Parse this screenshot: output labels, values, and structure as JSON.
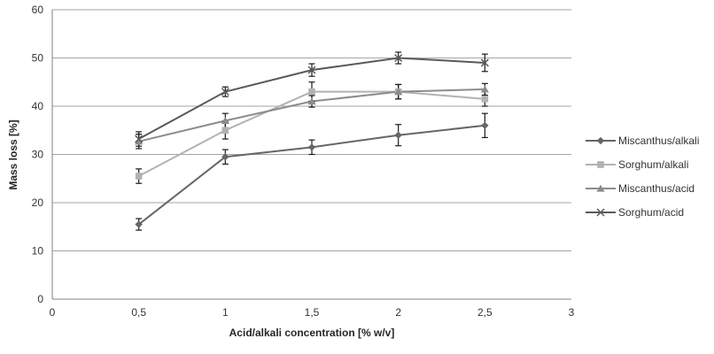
{
  "chart_data": {
    "type": "line",
    "title": "",
    "xlabel": "Acid/alkali concentration [% w/v]",
    "ylabel": "Mass loss [%]",
    "x": [
      0.5,
      1,
      1.5,
      2,
      2.5
    ],
    "xlim": [
      0,
      3
    ],
    "ylim": [
      0,
      60
    ],
    "x_tick_values": [
      0,
      0.5,
      1,
      1.5,
      2,
      2.5,
      3
    ],
    "x_tick_labels": [
      "0",
      "0,5",
      "1",
      "1,5",
      "2",
      "2,5",
      "3"
    ],
    "y_tick_values": [
      0,
      10,
      20,
      30,
      40,
      50,
      60
    ],
    "y_tick_labels": [
      "0",
      "10",
      "20",
      "30",
      "40",
      "50",
      "60"
    ],
    "grid": true,
    "legend_position": "right",
    "series": [
      {
        "name": "Miscanthus/alkali",
        "marker": "diamond",
        "color": "#666666",
        "values": [
          15.5,
          29.5,
          31.5,
          34.0,
          36.0
        ],
        "errors": [
          1.2,
          1.5,
          1.5,
          2.2,
          2.5
        ]
      },
      {
        "name": "Sorghum/alkali",
        "marker": "square",
        "color": "#b2b2b2",
        "values": [
          25.5,
          35.0,
          43.0,
          43.0,
          41.5
        ],
        "errors": [
          1.5,
          1.8,
          2.0,
          1.5,
          1.5
        ]
      },
      {
        "name": "Miscanthus/acid",
        "marker": "triangle",
        "color": "#8c8c8c",
        "values": [
          32.7,
          37.0,
          41.0,
          43.0,
          43.5
        ],
        "errors": [
          1.5,
          1.5,
          1.2,
          1.5,
          1.2
        ]
      },
      {
        "name": "Sorghum/acid",
        "marker": "x",
        "color": "#595959",
        "values": [
          33.2,
          43.0,
          47.5,
          50.0,
          49.0
        ],
        "errors": [
          1.5,
          1.0,
          1.3,
          1.2,
          1.8
        ]
      }
    ],
    "colors": {
      "error_bar": "#1a1a1a",
      "gridline": "#a6a6a6",
      "axis": "#808080",
      "text": "#333333"
    }
  }
}
